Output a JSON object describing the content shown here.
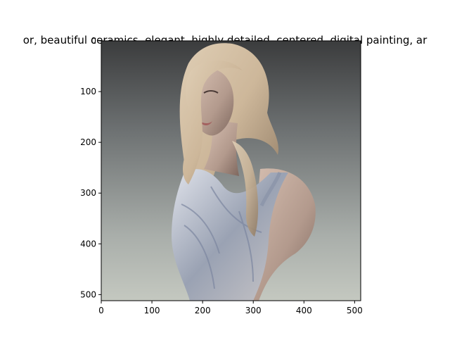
{
  "title": "or,  beautiful ceramics, elegant, highly detailed, centered, digital painting, ar",
  "image": {
    "subject": "ceramic-style portrait of a blonde woman in a draped sleeveless dress",
    "background_colors": [
      "#3b3c3d",
      "#6e7273",
      "#a9aeaa",
      "#c4c8c0"
    ],
    "hair_color": "#cdb79a",
    "skin_color": "#b39a8d",
    "dress_color": "#9aa2b3"
  },
  "axes": {
    "x_ticks": [
      "0",
      "100",
      "200",
      "300",
      "400",
      "500"
    ],
    "y_ticks": [
      "0",
      "100",
      "200",
      "300",
      "400",
      "500"
    ],
    "xlim": [
      0,
      512
    ],
    "ylim": [
      512,
      0
    ]
  }
}
